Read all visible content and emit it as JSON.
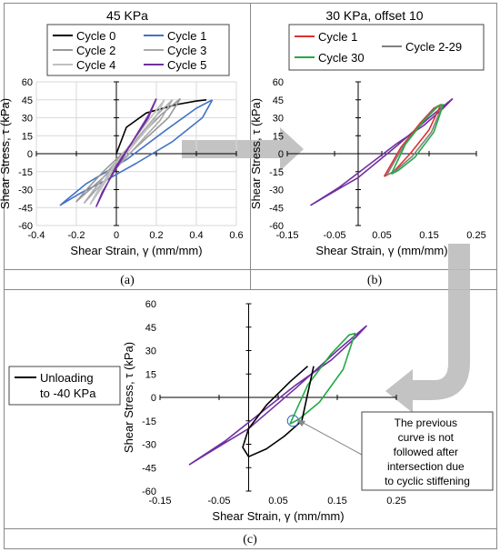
{
  "panels": {
    "a": {
      "caption": "(a)"
    },
    "b": {
      "caption": "(b)"
    },
    "c": {
      "caption": "(c)"
    }
  },
  "annotation": {
    "lines": [
      "The previous",
      "curve is not",
      "followed after",
      "intersection due",
      "to cyclic stiffening"
    ]
  },
  "chart_data": [
    {
      "type": "line",
      "title": "45 KPa",
      "xlabel": "Shear Strain, γ (mm/mm)",
      "ylabel": "Shear Stress, τ (kPa)",
      "xlim": [
        -0.4,
        0.6
      ],
      "ylim": [
        -60,
        60
      ],
      "xticks": [
        "-0.4",
        "-0.2",
        "0",
        "0.2",
        "0.4",
        "0.6"
      ],
      "yticks": [
        "60",
        "45",
        "30",
        "15",
        "0",
        "-15",
        "-30",
        "-45",
        "-60"
      ],
      "grid": true,
      "legend_placement": "top",
      "series": [
        {
          "name": "Cycle 0",
          "color": "#000000",
          "x": [
            0,
            0.05,
            0.15,
            0.3,
            0.4,
            0.45
          ],
          "y": [
            0,
            22,
            34,
            41,
            44,
            45
          ]
        },
        {
          "name": "Cycle 1",
          "color": "#4472c4",
          "x": [
            0.48,
            0.43,
            0.28,
            0.1,
            -0.05,
            -0.18,
            -0.28,
            -0.26,
            -0.15,
            0.05,
            0.25,
            0.4,
            0.48
          ],
          "y": [
            45,
            30,
            10,
            -8,
            -22,
            -33,
            -43,
            -40,
            -25,
            -5,
            20,
            38,
            45
          ]
        },
        {
          "name": "Cycle 2",
          "color": "#999999",
          "x": [
            0.32,
            0.26,
            0.13,
            0.0,
            -0.12,
            -0.2,
            -0.16,
            -0.06,
            0.08,
            0.22,
            0.32
          ],
          "y": [
            46,
            30,
            10,
            -10,
            -28,
            -40,
            -32,
            -14,
            8,
            32,
            46
          ]
        },
        {
          "name": "Cycle 3",
          "color": "#aaaaaa",
          "x": [
            0.28,
            0.22,
            0.11,
            0.0,
            -0.1,
            -0.16,
            -0.12,
            -0.03,
            0.09,
            0.2,
            0.28
          ],
          "y": [
            45,
            28,
            8,
            -12,
            -30,
            -41,
            -32,
            -12,
            10,
            32,
            45
          ]
        },
        {
          "name": "Cycle 4",
          "color": "#c0c0c0",
          "x": [
            0.24,
            0.19,
            0.09,
            -0.01,
            -0.08,
            -0.13,
            -0.1,
            -0.02,
            0.08,
            0.18,
            0.24
          ],
          "y": [
            45,
            28,
            8,
            -12,
            -30,
            -42,
            -33,
            -12,
            10,
            32,
            45
          ]
        },
        {
          "name": "Cycle 5",
          "color": "#7030a0",
          "x": [
            0.2,
            0.16,
            0.08,
            0.0,
            -0.06,
            -0.1,
            -0.07,
            0.0,
            0.08,
            0.16,
            0.2
          ],
          "y": [
            46,
            30,
            10,
            -10,
            -30,
            -44,
            -32,
            -12,
            10,
            32,
            46
          ]
        }
      ]
    },
    {
      "type": "line",
      "title": "30 KPa, offset 10",
      "xlabel": "Shear Strain, γ (mm/mm)",
      "ylabel": "Shear Stress, τ (kPa)",
      "xlim": [
        -0.15,
        0.25
      ],
      "ylim": [
        -60,
        60
      ],
      "xticks": [
        "-0.15",
        "-0.05",
        "0.05",
        "0.15",
        "0.25"
      ],
      "yticks": [
        "60",
        "45",
        "30",
        "15",
        "0",
        "-15",
        "-30",
        "-45",
        "-60"
      ],
      "grid": false,
      "legend_placement": "top",
      "series": [
        {
          "name": "",
          "color": "#7030a0",
          "x": [
            0.2,
            0.18,
            0.14,
            0.08,
            0.02,
            -0.04,
            -0.08,
            -0.1,
            -0.07,
            0.0,
            0.08,
            0.15,
            0.2
          ],
          "y": [
            46,
            38,
            24,
            8,
            -10,
            -28,
            -38,
            -43,
            -36,
            -20,
            6,
            30,
            46
          ]
        },
        {
          "name": "Cycle 1",
          "color": "#e03030",
          "x": [
            0.055,
            0.09,
            0.13,
            0.16,
            0.175,
            0.15,
            0.11,
            0.075,
            0.055
          ],
          "y": [
            -19,
            5,
            25,
            38,
            41,
            20,
            0,
            -15,
            -19
          ]
        },
        {
          "name": "Cycle 2-29",
          "color": "#808080",
          "x": [
            0.06,
            0.095,
            0.135,
            0.165,
            0.178,
            0.155,
            0.115,
            0.08,
            0.06
          ],
          "y": [
            -18,
            6,
            26,
            39,
            40,
            18,
            -2,
            -14,
            -18
          ]
        },
        {
          "name": "Cycle 30",
          "color": "#22aa44",
          "x": [
            0.07,
            0.1,
            0.14,
            0.17,
            0.18,
            0.16,
            0.12,
            0.085,
            0.07
          ],
          "y": [
            -17,
            8,
            28,
            40,
            41,
            18,
            -3,
            -14,
            -17
          ]
        }
      ]
    },
    {
      "type": "line",
      "title": "",
      "xlabel": "Shear Strain, γ (mm/mm)",
      "ylabel": "Shear Stress, τ (kPa)",
      "xlim": [
        -0.15,
        0.25
      ],
      "ylim": [
        -60,
        60
      ],
      "xticks": [
        "-0.15",
        "-0.05",
        "0.05",
        "0.15",
        "0.25"
      ],
      "yticks": [
        "60",
        "45",
        "30",
        "15",
        "0",
        "-15",
        "-30",
        "-45",
        "-60"
      ],
      "grid": false,
      "legend_placement": "left",
      "series": [
        {
          "name": "",
          "color": "#7030a0",
          "x": [
            0.2,
            0.18,
            0.14,
            0.08,
            0.02,
            -0.04,
            -0.08,
            -0.1,
            -0.07,
            0.0,
            0.08,
            0.15,
            0.2
          ],
          "y": [
            46,
            38,
            24,
            8,
            -10,
            -28,
            -38,
            -43,
            -36,
            -20,
            6,
            30,
            46
          ]
        },
        {
          "name": "",
          "color": "#22aa44",
          "x": [
            0.07,
            0.1,
            0.14,
            0.17,
            0.18,
            0.16,
            0.12,
            0.085,
            0.07
          ],
          "y": [
            -17,
            8,
            28,
            40,
            41,
            18,
            -3,
            -14,
            -17
          ]
        },
        {
          "name": "Unloading to -40 KPa",
          "color": "#000000",
          "x": [
            0.1,
            0.07,
            0.03,
            0.0,
            -0.01,
            0.0,
            0.03,
            0.06,
            0.09,
            0.11
          ],
          "y": [
            20,
            10,
            -5,
            -20,
            -32,
            -38,
            -33,
            -25,
            -15,
            20
          ]
        }
      ]
    }
  ]
}
